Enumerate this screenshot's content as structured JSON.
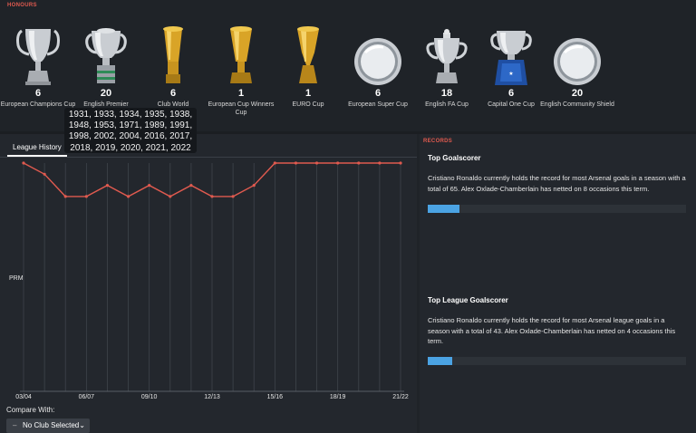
{
  "honours": {
    "label": "HONOURS",
    "trophies": [
      {
        "count": "6",
        "name": "European Champions Cup",
        "icon": "european-champions-cup-icon"
      },
      {
        "count": "20",
        "name": "English Premier",
        "icon": "english-premier-trophy-icon"
      },
      {
        "count": "6",
        "name": "Club World",
        "icon": "club-world-cup-icon"
      },
      {
        "count": "1",
        "name": "European Cup Winners Cup",
        "icon": "cup-winners-cup-icon"
      },
      {
        "count": "1",
        "name": "EURO Cup",
        "icon": "euro-cup-icon"
      },
      {
        "count": "6",
        "name": "European Super Cup",
        "icon": "super-cup-plate-icon"
      },
      {
        "count": "18",
        "name": "English FA Cup",
        "icon": "fa-cup-icon"
      },
      {
        "count": "6",
        "name": "Capital One Cup",
        "icon": "capital-one-cup-icon"
      },
      {
        "count": "20",
        "name": "English Community Shield",
        "icon": "community-shield-plate-icon"
      }
    ],
    "tooltip": "1931, 1933, 1934, 1935, 1938, 1948, 1953, 1971, 1989, 1991, 1998, 2002, 2004, 2016, 2017, 2018, 2019, 2020, 2021, 2022"
  },
  "history": {
    "tab_label": "League History",
    "y_axis_label": "PRM",
    "compare_label": "Compare With:",
    "compare_value": "No Club Selected",
    "colors": {
      "line": "#e05a4f",
      "grid": "#3f444b"
    }
  },
  "chart_data": {
    "type": "line",
    "x": [
      "03/04",
      "04/05",
      "05/06",
      "06/07",
      "07/08",
      "08/09",
      "09/10",
      "10/11",
      "11/12",
      "12/13",
      "13/14",
      "14/15",
      "15/16",
      "16/17",
      "17/18",
      "18/19",
      "19/20",
      "20/21",
      "21/22"
    ],
    "tick_labels": [
      "03/04",
      "06/07",
      "09/10",
      "12/13",
      "15/16",
      "18/19",
      "21/22"
    ],
    "series": [
      {
        "values": [
          1,
          2,
          4,
          4,
          3,
          4,
          3,
          4,
          3,
          4,
          4,
          3,
          1,
          1,
          1,
          1,
          1,
          1,
          1
        ]
      }
    ],
    "ylabel": "PRM",
    "ylim_note": "inverted",
    "grid": true
  },
  "records": {
    "label": "RECORDS",
    "items": [
      {
        "title": "Top Goalscorer",
        "desc": "Cristiano Ronaldo currently holds the record for most Arsenal goals in a season with a total of 65. Alex Oxlade-Chamberlain has netted on 8 occasions this term.",
        "progress": 0.123
      },
      {
        "title": "Top League Goalscorer",
        "desc": "Cristiano Ronaldo currently holds the record for most Arsenal league goals in a season with a total of 43. Alex Oxlade-Chamberlain has netted on 4 occasions this term.",
        "progress": 0.093
      }
    ]
  }
}
